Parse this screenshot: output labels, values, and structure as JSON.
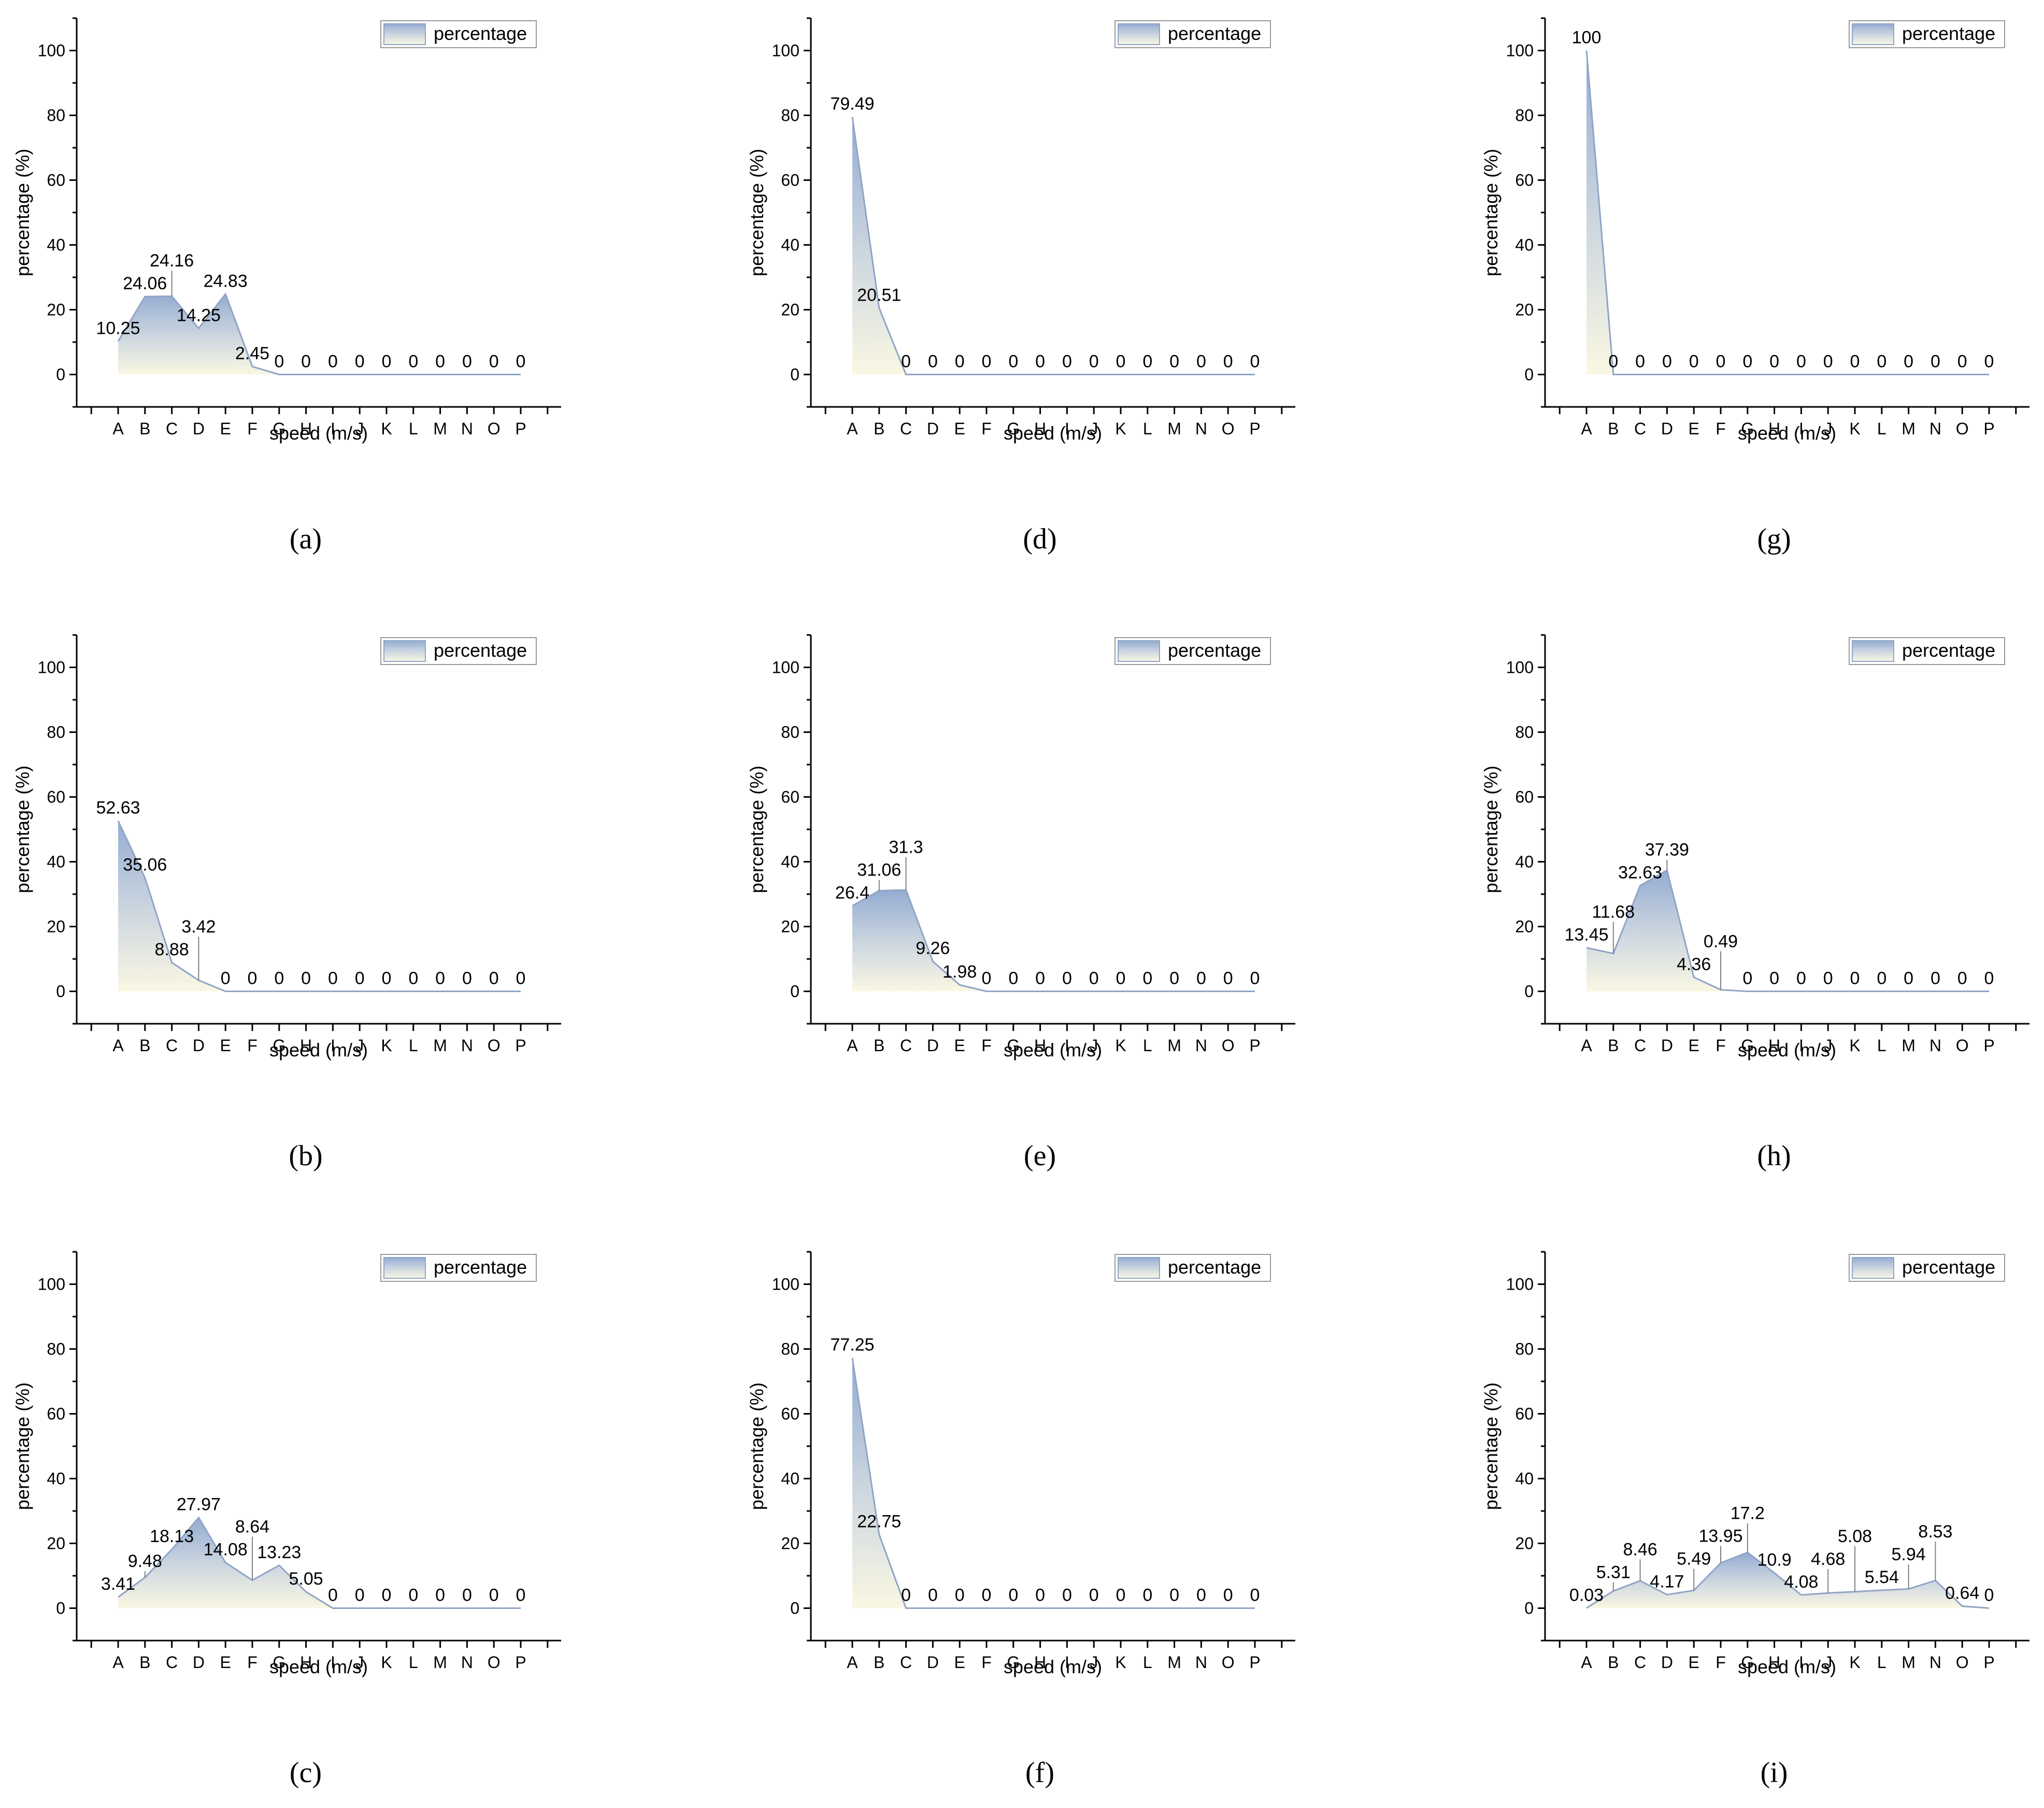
{
  "chart_data": [
    {
      "type": "area",
      "panel": "(a)",
      "xlabel": "speed (m/s)",
      "ylabel": "percentage (%)",
      "legend": "percentage",
      "legend_position": "top-right",
      "ylim": [
        -10,
        110
      ],
      "yticks": [
        0,
        20,
        40,
        60,
        80,
        100
      ],
      "categories": [
        "A",
        "B",
        "C",
        "D",
        "E",
        "F",
        "G",
        "H",
        "I",
        "J",
        "K",
        "L",
        "M",
        "N",
        "O",
        "P"
      ],
      "values": [
        10.25,
        24.06,
        24.16,
        14.25,
        24.83,
        2.45,
        0,
        0,
        0,
        0,
        0,
        0,
        0,
        0,
        0,
        0
      ],
      "labels": [
        "10.25",
        "24.06",
        "24.16",
        "14.25",
        "24.83",
        "2.45",
        "0",
        "0",
        "0",
        "0",
        "0",
        "0",
        "0",
        "0",
        "0",
        "0"
      ]
    },
    {
      "type": "area",
      "panel": "(b)",
      "xlabel": "speed (m/s)",
      "ylabel": "percentage (%)",
      "legend": "percentage",
      "legend_position": "top-right",
      "ylim": [
        -10,
        110
      ],
      "yticks": [
        0,
        20,
        40,
        60,
        80,
        100
      ],
      "categories": [
        "A",
        "B",
        "C",
        "D",
        "E",
        "F",
        "G",
        "H",
        "I",
        "J",
        "K",
        "L",
        "M",
        "N",
        "O",
        "P"
      ],
      "values": [
        52.63,
        35.06,
        8.88,
        3.42,
        0,
        0,
        0,
        0,
        0,
        0,
        0,
        0,
        0,
        0,
        0,
        0
      ],
      "labels": [
        "52.63",
        "35.06",
        "8.88",
        "3.42",
        "0",
        "0",
        "0",
        "0",
        "0",
        "0",
        "0",
        "0",
        "0",
        "0",
        "0",
        "0"
      ]
    },
    {
      "type": "area",
      "panel": "(c)",
      "xlabel": "speed (m/s)",
      "ylabel": "percentage (%)",
      "legend": "percentage",
      "legend_position": "top-right",
      "ylim": [
        -10,
        110
      ],
      "yticks": [
        0,
        20,
        40,
        60,
        80,
        100
      ],
      "categories": [
        "A",
        "B",
        "C",
        "D",
        "E",
        "F",
        "G",
        "H",
        "I",
        "J",
        "K",
        "L",
        "M",
        "N",
        "O",
        "P"
      ],
      "values": [
        3.41,
        9.48,
        18.13,
        27.97,
        14.08,
        8.64,
        13.23,
        5.05,
        0,
        0,
        0,
        0,
        0,
        0,
        0,
        0
      ],
      "labels": [
        "3.41",
        "9.48",
        "18.13",
        "27.97",
        "14.08",
        "8.64",
        "13.23",
        "5.05",
        "0",
        "0",
        "0",
        "0",
        "0",
        "0",
        "0",
        "0"
      ]
    },
    {
      "type": "area",
      "panel": "(d)",
      "xlabel": "speed (m/s)",
      "ylabel": "percentage (%)",
      "legend": "percentage",
      "legend_position": "top-right",
      "ylim": [
        -10,
        110
      ],
      "yticks": [
        0,
        20,
        40,
        60,
        80,
        100
      ],
      "categories": [
        "A",
        "B",
        "C",
        "D",
        "E",
        "F",
        "G",
        "H",
        "I",
        "J",
        "K",
        "L",
        "M",
        "N",
        "O",
        "P"
      ],
      "values": [
        79.49,
        20.51,
        0,
        0,
        0,
        0,
        0,
        0,
        0,
        0,
        0,
        0,
        0,
        0,
        0,
        0
      ],
      "labels": [
        "79.49",
        "20.51",
        "0",
        "0",
        "0",
        "0",
        "0",
        "0",
        "0",
        "0",
        "0",
        "0",
        "0",
        "0",
        "0",
        "0"
      ]
    },
    {
      "type": "area",
      "panel": "(e)",
      "xlabel": "speed (m/s)",
      "ylabel": "percentage (%)",
      "legend": "percentage",
      "legend_position": "top-right",
      "ylim": [
        -10,
        110
      ],
      "yticks": [
        0,
        20,
        40,
        60,
        80,
        100
      ],
      "categories": [
        "A",
        "B",
        "C",
        "D",
        "E",
        "F",
        "G",
        "H",
        "I",
        "J",
        "K",
        "L",
        "M",
        "N",
        "O",
        "P"
      ],
      "values": [
        26.4,
        31.06,
        31.3,
        9.26,
        1.98,
        0,
        0,
        0,
        0,
        0,
        0,
        0,
        0,
        0,
        0,
        0
      ],
      "labels": [
        "26.4",
        "31.06",
        "31.3",
        "9.26",
        "1.98",
        "0",
        "0",
        "0",
        "0",
        "0",
        "0",
        "0",
        "0",
        "0",
        "0",
        "0"
      ]
    },
    {
      "type": "area",
      "panel": "(f)",
      "xlabel": "speed (m/s)",
      "ylabel": "percentage (%)",
      "legend": "percentage",
      "legend_position": "top-right",
      "ylim": [
        -10,
        110
      ],
      "yticks": [
        0,
        20,
        40,
        60,
        80,
        100
      ],
      "categories": [
        "A",
        "B",
        "C",
        "D",
        "E",
        "F",
        "G",
        "H",
        "I",
        "J",
        "K",
        "L",
        "M",
        "N",
        "O",
        "P"
      ],
      "values": [
        77.25,
        22.75,
        0,
        0,
        0,
        0,
        0,
        0,
        0,
        0,
        0,
        0,
        0,
        0,
        0,
        0
      ],
      "labels": [
        "77.25",
        "22.75",
        "0",
        "0",
        "0",
        "0",
        "0",
        "0",
        "0",
        "0",
        "0",
        "0",
        "0",
        "0",
        "0",
        "0"
      ]
    },
    {
      "type": "area",
      "panel": "(g)",
      "xlabel": "speed (m/s)",
      "ylabel": "percentage (%)",
      "legend": "percentage",
      "legend_position": "top-right",
      "ylim": [
        -10,
        110
      ],
      "yticks": [
        0,
        20,
        40,
        60,
        80,
        100
      ],
      "categories": [
        "A",
        "B",
        "C",
        "D",
        "E",
        "F",
        "G",
        "H",
        "I",
        "J",
        "K",
        "L",
        "M",
        "N",
        "O",
        "P"
      ],
      "values": [
        100,
        0,
        0,
        0,
        0,
        0,
        0,
        0,
        0,
        0,
        0,
        0,
        0,
        0,
        0,
        0
      ],
      "labels": [
        "100",
        "0",
        "0",
        "0",
        "0",
        "0",
        "0",
        "0",
        "0",
        "0",
        "0",
        "0",
        "0",
        "0",
        "0",
        "0"
      ]
    },
    {
      "type": "area",
      "panel": "(h)",
      "xlabel": "speed (m/s)",
      "ylabel": "percentage (%)",
      "legend": "percentage",
      "legend_position": "top-right",
      "ylim": [
        -10,
        110
      ],
      "yticks": [
        0,
        20,
        40,
        60,
        80,
        100
      ],
      "categories": [
        "A",
        "B",
        "C",
        "D",
        "E",
        "F",
        "G",
        "H",
        "I",
        "J",
        "K",
        "L",
        "M",
        "N",
        "O",
        "P"
      ],
      "values": [
        13.45,
        11.68,
        32.63,
        37.39,
        4.36,
        0.49,
        0,
        0,
        0,
        0,
        0,
        0,
        0,
        0,
        0,
        0
      ],
      "labels": [
        "13.45",
        "11.68",
        "32.63",
        "37.39",
        "4.36",
        "0.49",
        "0",
        "0",
        "0",
        "0",
        "0",
        "0",
        "0",
        "0",
        "0",
        "0"
      ]
    },
    {
      "type": "area",
      "panel": "(i)",
      "xlabel": "speed (m/s)",
      "ylabel": "percentage (%)",
      "legend": "percentage",
      "legend_position": "top-right",
      "ylim": [
        -10,
        110
      ],
      "yticks": [
        0,
        20,
        40,
        60,
        80,
        100
      ],
      "categories": [
        "A",
        "B",
        "C",
        "D",
        "E",
        "F",
        "G",
        "H",
        "I",
        "J",
        "K",
        "L",
        "M",
        "N",
        "O",
        "P"
      ],
      "values": [
        0.03,
        5.31,
        8.46,
        4.17,
        5.49,
        13.95,
        17.2,
        10.9,
        4.08,
        4.68,
        5.08,
        5.54,
        5.94,
        8.53,
        0.64,
        0
      ],
      "labels": [
        "0.03",
        "5.31",
        "8.46",
        "4.17",
        "5.49",
        "13.95",
        "17.2",
        "10.9",
        "4.08",
        "4.68",
        "5.08",
        "5.54",
        "5.94",
        "8.53",
        "0.64",
        "0"
      ]
    }
  ],
  "colors": {
    "fill_top": "#94acd2",
    "fill_mid": "#cfd8e0",
    "fill_bottom": "#faf7e3",
    "outline": "#8fa4c6",
    "axis": "#000000",
    "leader": "#808080"
  }
}
